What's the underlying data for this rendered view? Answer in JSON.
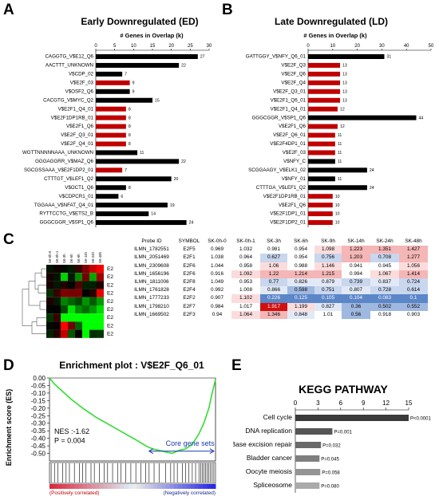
{
  "panels": {
    "A": {
      "letter": "A",
      "title": "Early Downregulated (ED)",
      "subtitle": "# Genes in Overlap (k)",
      "chart_data": {
        "type": "bar",
        "orientation": "horizontal",
        "xlim": [
          0,
          30
        ],
        "xticks": [
          0,
          5,
          10,
          15,
          20,
          25,
          30
        ],
        "categories": [
          "CAGGTG_V$E12_Q6",
          "AACTTT_UNKNOWN",
          "V$CDP_02",
          "V$E2F_03",
          "V$OSF2_Q6",
          "CACGTG_V$MYC_Q2",
          "V$E2F1_Q4_01",
          "V$E2F1DP1RB_01",
          "V$E2F1_Q6",
          "V$E2F_Q3_01",
          "V$E2F_Q4_01",
          "WGTTNNNNNAAA_UNKNOWN",
          "GGGAGGRR_V$MAZ_Q6",
          "SGCGSSAAA_V$E2F1DP2_01",
          "CTTTGT_V$LEF1_Q2",
          "V$OCT1_Q6",
          "V$CDPCR1_01",
          "TGGAAA_V$NFAT_Q4_01",
          "RYTTCCTG_V$ETS2_B",
          "GGGCGGR_V$SP1_Q6"
        ],
        "values": [
          27,
          22,
          7,
          9,
          9,
          15,
          8,
          8,
          8,
          8,
          8,
          11,
          22,
          7,
          20,
          8,
          6,
          19,
          14,
          24
        ],
        "highlight": [
          false,
          false,
          false,
          true,
          false,
          false,
          true,
          true,
          true,
          true,
          true,
          false,
          false,
          true,
          false,
          false,
          false,
          false,
          false,
          false
        ],
        "colors": {
          "default": "#000000",
          "highlight": "#c00000"
        }
      }
    },
    "B": {
      "letter": "B",
      "title": "Late Downregulated (LD)",
      "subtitle": "# Genes in Overlap (k)",
      "chart_data": {
        "type": "bar",
        "orientation": "horizontal",
        "xlim": [
          0,
          50
        ],
        "xticks": [
          0,
          10,
          20,
          30,
          40,
          50
        ],
        "categories": [
          "GATTGGY_V$NFY_Q6_01",
          "V$E2F_Q3",
          "V$E2F_Q6",
          "V$E2F_Q4",
          "V$E2F_Q3_01",
          "V$E2F1_Q6_01",
          "V$E2F1_Q4_01",
          "GGGCGGR_V$SP1_Q6",
          "V$E2F1_Q6",
          "V$E2F_Q6_01",
          "V$E2F4DP1_01",
          "V$E2F_03",
          "V$NFY_C",
          "SCGGAAGY_V$ELK1_02",
          "V$NFY_01",
          "CTTTGA_V$LEF1_Q2",
          "V$E2F1DP1RB_01",
          "V$E2F1_Q6",
          "V$E2F1DP1_01",
          "V$E2F1DP2_01"
        ],
        "values": [
          31,
          13,
          13,
          13,
          13,
          13,
          12,
          44,
          12,
          11,
          11,
          11,
          11,
          24,
          11,
          24,
          10,
          10,
          10,
          10
        ],
        "highlight": [
          false,
          true,
          true,
          true,
          true,
          true,
          true,
          false,
          true,
          true,
          true,
          true,
          false,
          false,
          false,
          false,
          true,
          true,
          true,
          true
        ],
        "colors": {
          "default": "#000000",
          "highlight": "#c00000"
        }
      }
    },
    "C": {
      "letter": "C",
      "table": {
        "headers": [
          "Probe ID",
          "SYMBOL",
          "SK-0h-0",
          "SK-0h-1",
          "SK-3h",
          "SK-6h",
          "SK-9h",
          "SK-14h",
          "SK-24h",
          "SK-48h"
        ],
        "rows": [
          [
            "ILMN_1782551",
            "E2F5",
            "0.969",
            "1.032",
            "0.981",
            "0.954",
            "1.098",
            "1.223",
            "1.351",
            "1.427"
          ],
          [
            "ILMN_2051469",
            "E2F1",
            "1.038",
            "0.964",
            "0.627",
            "0.954",
            "0.756",
            "1.203",
            "0.708",
            "1.277"
          ],
          [
            "ILMN_2309608",
            "E2F6",
            "1.044",
            "0.958",
            "1.06",
            "0.988",
            "1.146",
            "0.941",
            "0.945",
            "1.056"
          ],
          [
            "ILMN_1656196",
            "E2F6",
            "0.916",
            "1.092",
            "1.22",
            "1.214",
            "1.215",
            "0.994",
            "1.067",
            "1.414"
          ],
          [
            "ILMN_1811006",
            "E2F8",
            "1.049",
            "0.953",
            "0.77",
            "0.826",
            "0.879",
            "0.739",
            "0.837",
            "0.724"
          ],
          [
            "ILMN_1761828",
            "E2F4",
            "0.992",
            "1.008",
            "0.866",
            "0.598",
            "0.751",
            "0.807",
            "0.728",
            "0.614"
          ],
          [
            "ILMN_1777233",
            "E2F2",
            "0.907",
            "1.102",
            "0.226",
            "0.125",
            "0.105",
            "0.104",
            "0.083",
            "0.1"
          ],
          [
            "ILMN_1798210",
            "E2F7",
            "0.984",
            "1.017",
            "1.917",
            "1.199",
            "0.827",
            "0.36",
            "0.502",
            "0.552"
          ],
          [
            "ILMN_1669502",
            "E2F3",
            "0.94",
            "1.064",
            "1.346",
            "0.848",
            "1.01",
            "0.56",
            "0.918",
            "0.903"
          ]
        ],
        "heatmap_labels": [
          "E2F5",
          "E2F1",
          "E2F6",
          "E2F6",
          "E2F8",
          "E2F4",
          "E2F2",
          "E2F7",
          "E2F3"
        ],
        "heatmap_columns": [
          "SK-0h-0",
          "SK-0h-1",
          "SK-3h",
          "SK-6h",
          "SK-9h",
          "SK-14h",
          "SK-24h",
          "SK-48h"
        ]
      }
    },
    "D": {
      "letter": "D",
      "title": "Enrichment plot : V$E2F_Q6_01",
      "ylabel": "Enrichment score (ES)",
      "nes": "NES :-1.62",
      "pval": "P = 0.004",
      "core_label": "Core gene sets",
      "pos_label": "(Positively correlated)",
      "neg_label": "(Negatively correlated)",
      "chart_data": {
        "type": "line",
        "ylim": [
          -0.55,
          0.0
        ],
        "yticks": [
          0.0,
          -0.05,
          -0.1,
          -0.15,
          -0.2,
          -0.25,
          -0.3,
          -0.35,
          -0.4,
          -0.45,
          -0.5
        ],
        "ytick_labels": [
          "0.00",
          "-0.05",
          "-0.10",
          "-0.15",
          "-0.20",
          "-0.25",
          "-0.30",
          "-0.35",
          "-0.40",
          "-0.45",
          "-0.50"
        ],
        "x": [
          0,
          0.03,
          0.08,
          0.13,
          0.2,
          0.28,
          0.36,
          0.44,
          0.52,
          0.58,
          0.62,
          0.66,
          0.7,
          0.74,
          0.78,
          0.82,
          0.86,
          0.9,
          0.93,
          0.96,
          0.98,
          1.0
        ],
        "y": [
          0,
          -0.04,
          -0.09,
          -0.14,
          -0.2,
          -0.26,
          -0.31,
          -0.36,
          -0.41,
          -0.45,
          -0.47,
          -0.48,
          -0.49,
          -0.5,
          -0.48,
          -0.47,
          -0.44,
          -0.37,
          -0.3,
          -0.2,
          -0.1,
          -0.01
        ],
        "line_color": "#33dd33"
      }
    },
    "E": {
      "letter": "E",
      "title": "KEGG PATHWAY",
      "chart_data": {
        "type": "bar",
        "orientation": "horizontal",
        "xlim": [
          0,
          15
        ],
        "xticks": [
          0,
          3,
          6,
          9,
          12,
          15
        ],
        "categories": [
          "Cell cycle",
          "DNA replication",
          "Base excision repair",
          "Bladder cancer",
          "Oocyte meiosis",
          "Spliceosome"
        ],
        "values": [
          15.0,
          4.9,
          3.4,
          3.2,
          3.3,
          3.2
        ],
        "pvalues": [
          "P<0.0001",
          "P=0.001",
          "P=0.032",
          "P=0.045",
          "P=0.058",
          "P=0.080"
        ],
        "colors": [
          "#3a3a3a",
          "#555555",
          "#6a6a6a",
          "#7f7f7f",
          "#949494",
          "#aaaaaa"
        ]
      }
    }
  }
}
